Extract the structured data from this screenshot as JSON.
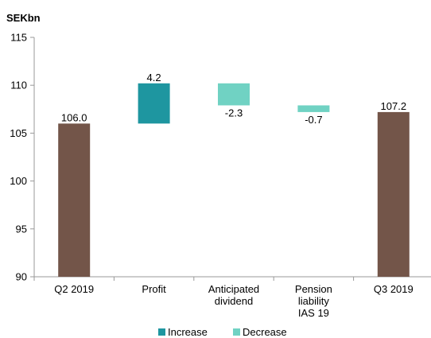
{
  "chart_data": {
    "type": "bar",
    "subtype": "waterfall",
    "unit_label": "SEKbn",
    "ylim": [
      90,
      115
    ],
    "yticks": [
      "90",
      "95",
      "100",
      "105",
      "110",
      "115"
    ],
    "grid": false,
    "legend_position": "bottom",
    "categories": [
      {
        "lines": [
          "Q2 2019"
        ]
      },
      {
        "lines": [
          "Profit"
        ]
      },
      {
        "lines": [
          "Anticipated",
          "dividend"
        ]
      },
      {
        "lines": [
          "Pension",
          "liability",
          "IAS 19"
        ]
      },
      {
        "lines": [
          "Q3 2019"
        ]
      }
    ],
    "bars": [
      {
        "kind": "total",
        "start": 90,
        "end": 106.0,
        "label": "106.0"
      },
      {
        "kind": "increase",
        "start": 106.0,
        "end": 110.2,
        "label": "4.2"
      },
      {
        "kind": "decrease",
        "start": 110.2,
        "end": 107.9,
        "label": "-2.3"
      },
      {
        "kind": "decrease",
        "start": 107.9,
        "end": 107.2,
        "label": "-0.7"
      },
      {
        "kind": "total",
        "start": 90,
        "end": 107.2,
        "label": "107.2"
      }
    ],
    "legend": [
      {
        "key": "increase",
        "label": "Increase"
      },
      {
        "key": "decrease",
        "label": "Decrease"
      }
    ],
    "colors": {
      "total": "#735549",
      "increase": "#1E96A0",
      "decrease": "#70D2C3",
      "axis": "#999999"
    }
  }
}
